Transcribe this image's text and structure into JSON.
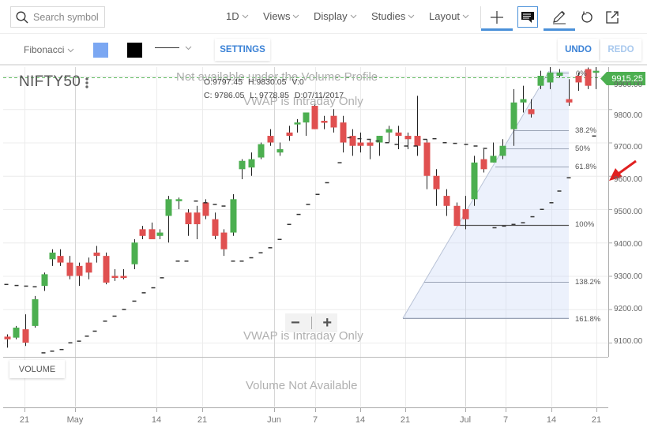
{
  "header": {
    "search_placeholder": "Search symbol",
    "menus": [
      {
        "label": "1D"
      },
      {
        "label": "Views"
      },
      {
        "label": "Display"
      },
      {
        "label": "Studies"
      },
      {
        "label": "Layout"
      }
    ],
    "tools": [
      "crosshair-icon",
      "comment-icon",
      "draw-pencil-icon",
      "reset-icon",
      "popout-icon"
    ]
  },
  "drawbar": {
    "tool_label": "Fibonacci",
    "fill_color": "#7ba7f2",
    "line_color": "#000000",
    "settings_label": "SETTINGS",
    "undo_label": "UNDO",
    "redo_label": "REDO",
    "undo_color": "#3b82d6",
    "redo_color": "#a9c9ee"
  },
  "chart": {
    "symbol": "NIFTY50",
    "ohlc": {
      "open": "O:9797.45",
      "high": "H:9830.05",
      "volume": "V:0",
      "close": "C: 9786.05",
      "low": "L: 9778.85",
      "date": "D:07/11/2017"
    },
    "current_price": "9915.25",
    "watermarks": {
      "volume_profile": "Not available under the Volume Profile",
      "vwap_top": "VWAP is Intraday Only",
      "vwap_bottom": "VWAP is Intraday Only",
      "volume_na": "Volume Not Available"
    },
    "y_axis": [
      "9900.00",
      "9800.00",
      "9700.00",
      "9600.00",
      "9500.00",
      "9400.00",
      "9300.00",
      "9200.00",
      "9100.00"
    ],
    "fib_levels": [
      "0%",
      "38.2%",
      "50%",
      "61.8%",
      "100%",
      "138.2%",
      "161.8%"
    ],
    "x_axis": [
      "21",
      "May",
      "14",
      "21",
      "Jun",
      "7",
      "14",
      "21",
      "Jul",
      "7",
      "14",
      "21"
    ],
    "volume_button": "VOLUME",
    "zoom_out": "−",
    "zoom_in": "+",
    "up_color": "#4caf50",
    "down_color": "#e05050"
  }
}
